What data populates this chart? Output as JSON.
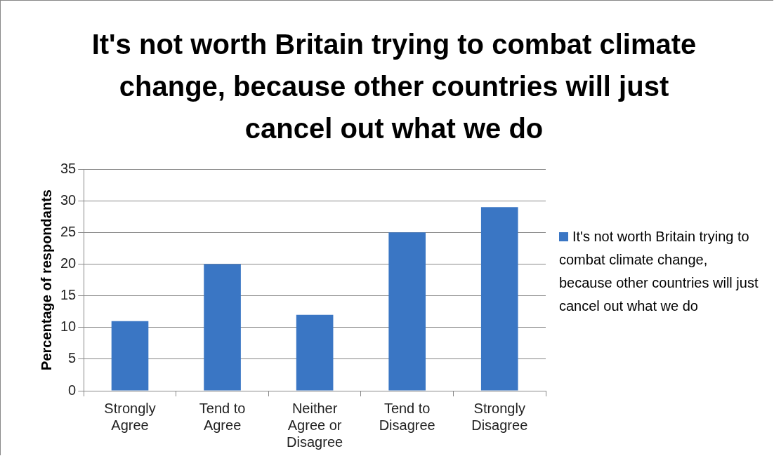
{
  "chart_data": {
    "type": "bar",
    "title": "It's not worth Britain trying to combat climate change, because other countries will just cancel out what we do",
    "ylabel": "Percentage of respondants",
    "categories": [
      "Strongly Agree",
      "Tend to Agree",
      "Neither Agree or Disagree",
      "Tend to Disagree",
      "Strongly Disagree"
    ],
    "series": [
      {
        "name": "It's not worth Britain trying to combat climate change, because other countries will just cancel out what we do",
        "color": "#3a76c4",
        "values": [
          11,
          20,
          12,
          25,
          29
        ]
      }
    ],
    "ylim": [
      0,
      35
    ],
    "yticks": [
      0,
      5,
      10,
      15,
      20,
      25,
      30,
      35
    ],
    "grid": "y",
    "legend": "right"
  }
}
